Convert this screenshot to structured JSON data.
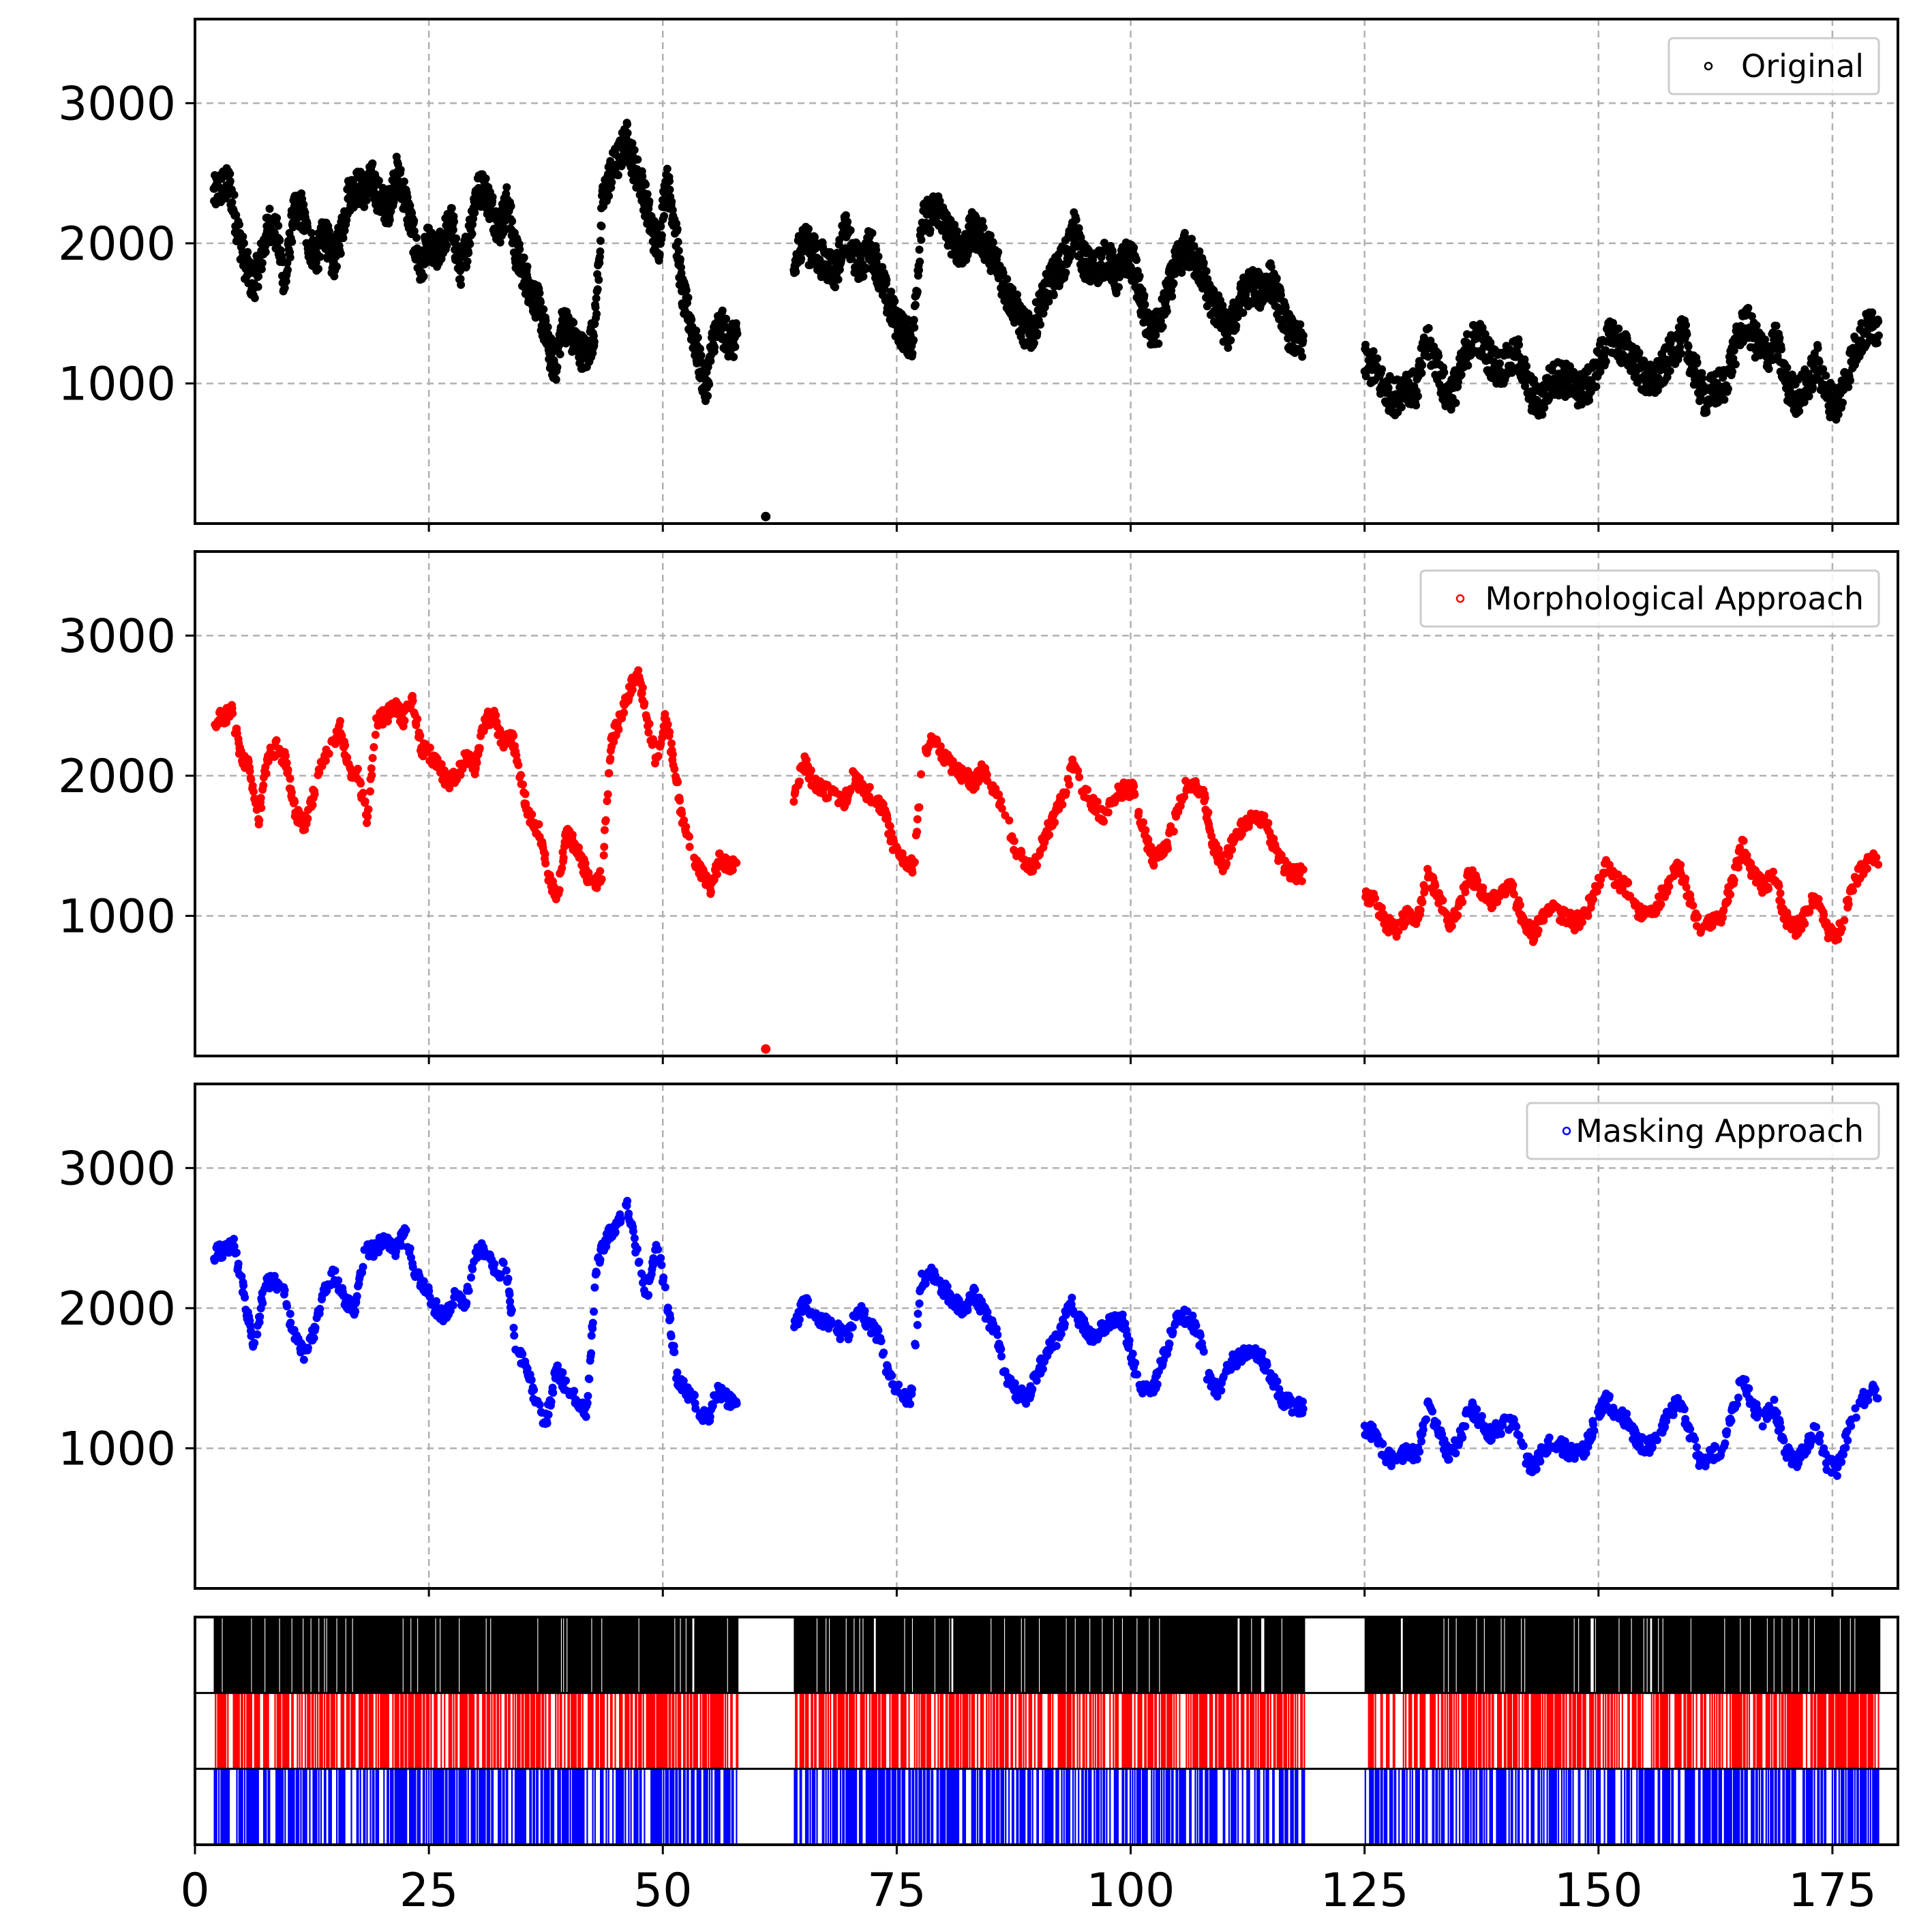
{
  "chart_data": [
    {
      "type": "scatter",
      "panel": "original",
      "legend": "Original",
      "color": "#000000",
      "xlim": [
        0,
        182
      ],
      "ylim": [
        0,
        3600
      ],
      "yticks": [
        1000,
        2000,
        3000
      ],
      "xticks": [
        25,
        50,
        75,
        100,
        125,
        150,
        175
      ],
      "grid": true,
      "legend_position": "top-right",
      "segments": [
        {
          "t": [
            2,
            58
          ],
          "y": [
            2350,
            2400,
            2420,
            2100,
            1850,
            1700,
            1900,
            2150,
            2050,
            1700,
            2200,
            2250,
            2000,
            1900,
            2100,
            1850,
            2050,
            2350,
            2400,
            2380,
            2450,
            2300,
            2250,
            2500,
            2350,
            2100,
            1800,
            2000,
            1900,
            2050,
            2150,
            1800,
            2000,
            2350,
            2400,
            2250,
            2100,
            2300,
            1950,
            1800,
            1650,
            1550,
            1300,
            1100,
            1450,
            1350,
            1250,
            1200,
            1400,
            2300,
            2500,
            2600,
            2750,
            2550,
            2400,
            2150,
            1950,
            2450,
            2200,
            1650,
            1450,
            1200,
            950,
            1350,
            1400,
            1300
          ]
        },
        {
          "t": [
            64,
            118.5
          ],
          "y": [
            1800,
            2050,
            1950,
            1900,
            1850,
            1800,
            2100,
            1900,
            1850,
            2000,
            1800,
            1600,
            1450,
            1350,
            1300,
            2150,
            2200,
            2250,
            2100,
            2000,
            1950,
            2100,
            2050,
            1950,
            1850,
            1650,
            1550,
            1400,
            1350,
            1550,
            1700,
            1800,
            1900,
            2100,
            1900,
            1800,
            1850,
            1900,
            1750,
            1900,
            1850,
            1550,
            1350,
            1400,
            1650,
            1850,
            1950,
            1900,
            1800,
            1600,
            1500,
            1350,
            1500,
            1650,
            1700,
            1650,
            1750,
            1600,
            1400,
            1300
          ]
        },
        {
          "t": [
            125,
            180
          ],
          "y": [
            1150,
            1100,
            950,
            900,
            1000,
            950,
            1300,
            1150,
            900,
            1000,
            1250,
            1350,
            1200,
            1100,
            1150,
            1200,
            950,
            850,
            1000,
            1050,
            1000,
            950,
            1000,
            1200,
            1350,
            1250,
            1200,
            1050,
            1000,
            1100,
            1250,
            1350,
            1100,
            900,
            950,
            1000,
            1250,
            1450,
            1300,
            1200,
            1300,
            1000,
            900,
            1000,
            1150,
            900,
            850,
            1100,
            1300,
            1400
          ]
        }
      ],
      "outlier": {
        "t": 61,
        "y": 50
      }
    },
    {
      "type": "scatter",
      "panel": "morphological",
      "legend": "Morphological Approach",
      "color": "#ff0000",
      "xlim": [
        0,
        182
      ],
      "ylim": [
        0,
        3600
      ],
      "yticks": [
        1000,
        2000,
        3000
      ],
      "xticks": [
        25,
        50,
        75,
        100,
        125,
        150,
        175
      ],
      "grid": true,
      "legend_position": "top-right",
      "segments": [
        {
          "t": [
            2,
            58
          ],
          "y": [
            2380,
            2420,
            2450,
            2150,
            2050,
            1700,
            2150,
            2200,
            2100,
            1750,
            1650,
            1850,
            2100,
            2200,
            2350,
            2050,
            2000,
            1700,
            2400,
            2420,
            2500,
            2400,
            2550,
            2200,
            2150,
            2050,
            1950,
            2000,
            2150,
            2050,
            2400,
            2420,
            2250,
            2300,
            1950,
            1700,
            1600,
            1300,
            1100,
            1600,
            1500,
            1350,
            1200,
            1300,
            2250,
            2400,
            2600,
            2750,
            2400,
            2100,
            2450,
            2050,
            1650,
            1450,
            1300,
            1200,
            1400,
            1350
          ]
        },
        {
          "t": [
            64,
            118.5
          ],
          "y": [
            1850,
            2100,
            1950,
            1900,
            1850,
            1800,
            2000,
            1900,
            1850,
            1750,
            1500,
            1400,
            1350,
            2200,
            2250,
            2150,
            2050,
            2000,
            1950,
            2050,
            1900,
            1800,
            1500,
            1400,
            1350,
            1550,
            1700,
            1850,
            2100,
            1900,
            1800,
            1700,
            1850,
            1900,
            1900,
            1600,
            1400,
            1450,
            1650,
            1900,
            1950,
            1850,
            1500,
            1350,
            1550,
            1650,
            1700,
            1700,
            1500,
            1350,
            1300
          ]
        },
        {
          "t": [
            125,
            180
          ],
          "y": [
            1150,
            1100,
            950,
            900,
            1000,
            950,
            1300,
            1150,
            950,
            1050,
            1300,
            1200,
            1100,
            1150,
            1200,
            1000,
            850,
            1000,
            1050,
            1000,
            950,
            1000,
            1200,
            1350,
            1250,
            1200,
            1050,
            1000,
            1100,
            1250,
            1350,
            1100,
            900,
            950,
            1000,
            1250,
            1500,
            1300,
            1200,
            1300,
            1000,
            900,
            1000,
            1150,
            900,
            850,
            1100,
            1300,
            1400
          ]
        }
      ],
      "outlier": {
        "t": 61,
        "y": 50
      }
    },
    {
      "type": "scatter",
      "panel": "masking",
      "legend": "Masking Approach",
      "color": "#0000ff",
      "xlim": [
        0,
        182
      ],
      "ylim": [
        0,
        3600
      ],
      "yticks": [
        1000,
        2000,
        3000
      ],
      "xticks": [
        25,
        50,
        75,
        100,
        125,
        150,
        175
      ],
      "grid": true,
      "legend_position": "top-right",
      "segments": [
        {
          "t": [
            2,
            58
          ],
          "y": [
            2380,
            2420,
            2450,
            2100,
            1700,
            2150,
            2200,
            2100,
            1800,
            1650,
            1850,
            2150,
            2250,
            2050,
            2000,
            2400,
            2420,
            2500,
            2400,
            2550,
            2250,
            2150,
            2000,
            1950,
            2100,
            2050,
            2400,
            2420,
            2250,
            2300,
            1700,
            1600,
            1300,
            1200,
            1550,
            1450,
            1350,
            1250,
            2300,
            2500,
            2600,
            2750,
            2400,
            2100,
            2450,
            2050,
            1500,
            1400,
            1300,
            1200,
            1400,
            1350
          ]
        },
        {
          "t": [
            64,
            118.5
          ],
          "y": [
            1850,
            2050,
            1950,
            1900,
            1850,
            1800,
            2000,
            1900,
            1800,
            1500,
            1400,
            1350,
            2200,
            2250,
            2150,
            2050,
            2000,
            2100,
            1950,
            1850,
            1500,
            1400,
            1350,
            1550,
            1700,
            1800,
            2050,
            1900,
            1800,
            1850,
            1900,
            1900,
            1600,
            1400,
            1450,
            1700,
            1900,
            1950,
            1850,
            1500,
            1400,
            1600,
            1650,
            1700,
            1650,
            1500,
            1350,
            1300
          ]
        },
        {
          "t": [
            125,
            180
          ],
          "y": [
            1150,
            1100,
            950,
            900,
            1000,
            950,
            1300,
            1150,
            950,
            1050,
            1300,
            1200,
            1100,
            1150,
            1200,
            1000,
            850,
            1000,
            1050,
            1000,
            950,
            1000,
            1200,
            1350,
            1250,
            1200,
            1050,
            1000,
            1100,
            1250,
            1350,
            1100,
            900,
            950,
            1000,
            1250,
            1500,
            1300,
            1200,
            1300,
            1000,
            900,
            1000,
            1150,
            900,
            850,
            1100,
            1300,
            1400
          ]
        }
      ]
    },
    {
      "type": "event-raster",
      "panel": "coverage",
      "xlim": [
        0,
        182
      ],
      "xticks": [
        0,
        25,
        50,
        75,
        100,
        125,
        150,
        175
      ],
      "rows": [
        {
          "name": "original",
          "color": "#000000",
          "density": 0.92,
          "intervals": [
            [
              2,
              58
            ],
            [
              64,
              118.5
            ],
            [
              125,
              180
            ]
          ]
        },
        {
          "name": "morphological",
          "color": "#ff0000",
          "density": 0.62,
          "intervals": [
            [
              2,
              58
            ],
            [
              64,
              118.5
            ],
            [
              125,
              180
            ]
          ]
        },
        {
          "name": "masking",
          "color": "#0000ff",
          "density": 0.6,
          "intervals": [
            [
              2,
              58
            ],
            [
              64,
              118.5
            ],
            [
              125,
              180
            ]
          ]
        }
      ]
    }
  ]
}
